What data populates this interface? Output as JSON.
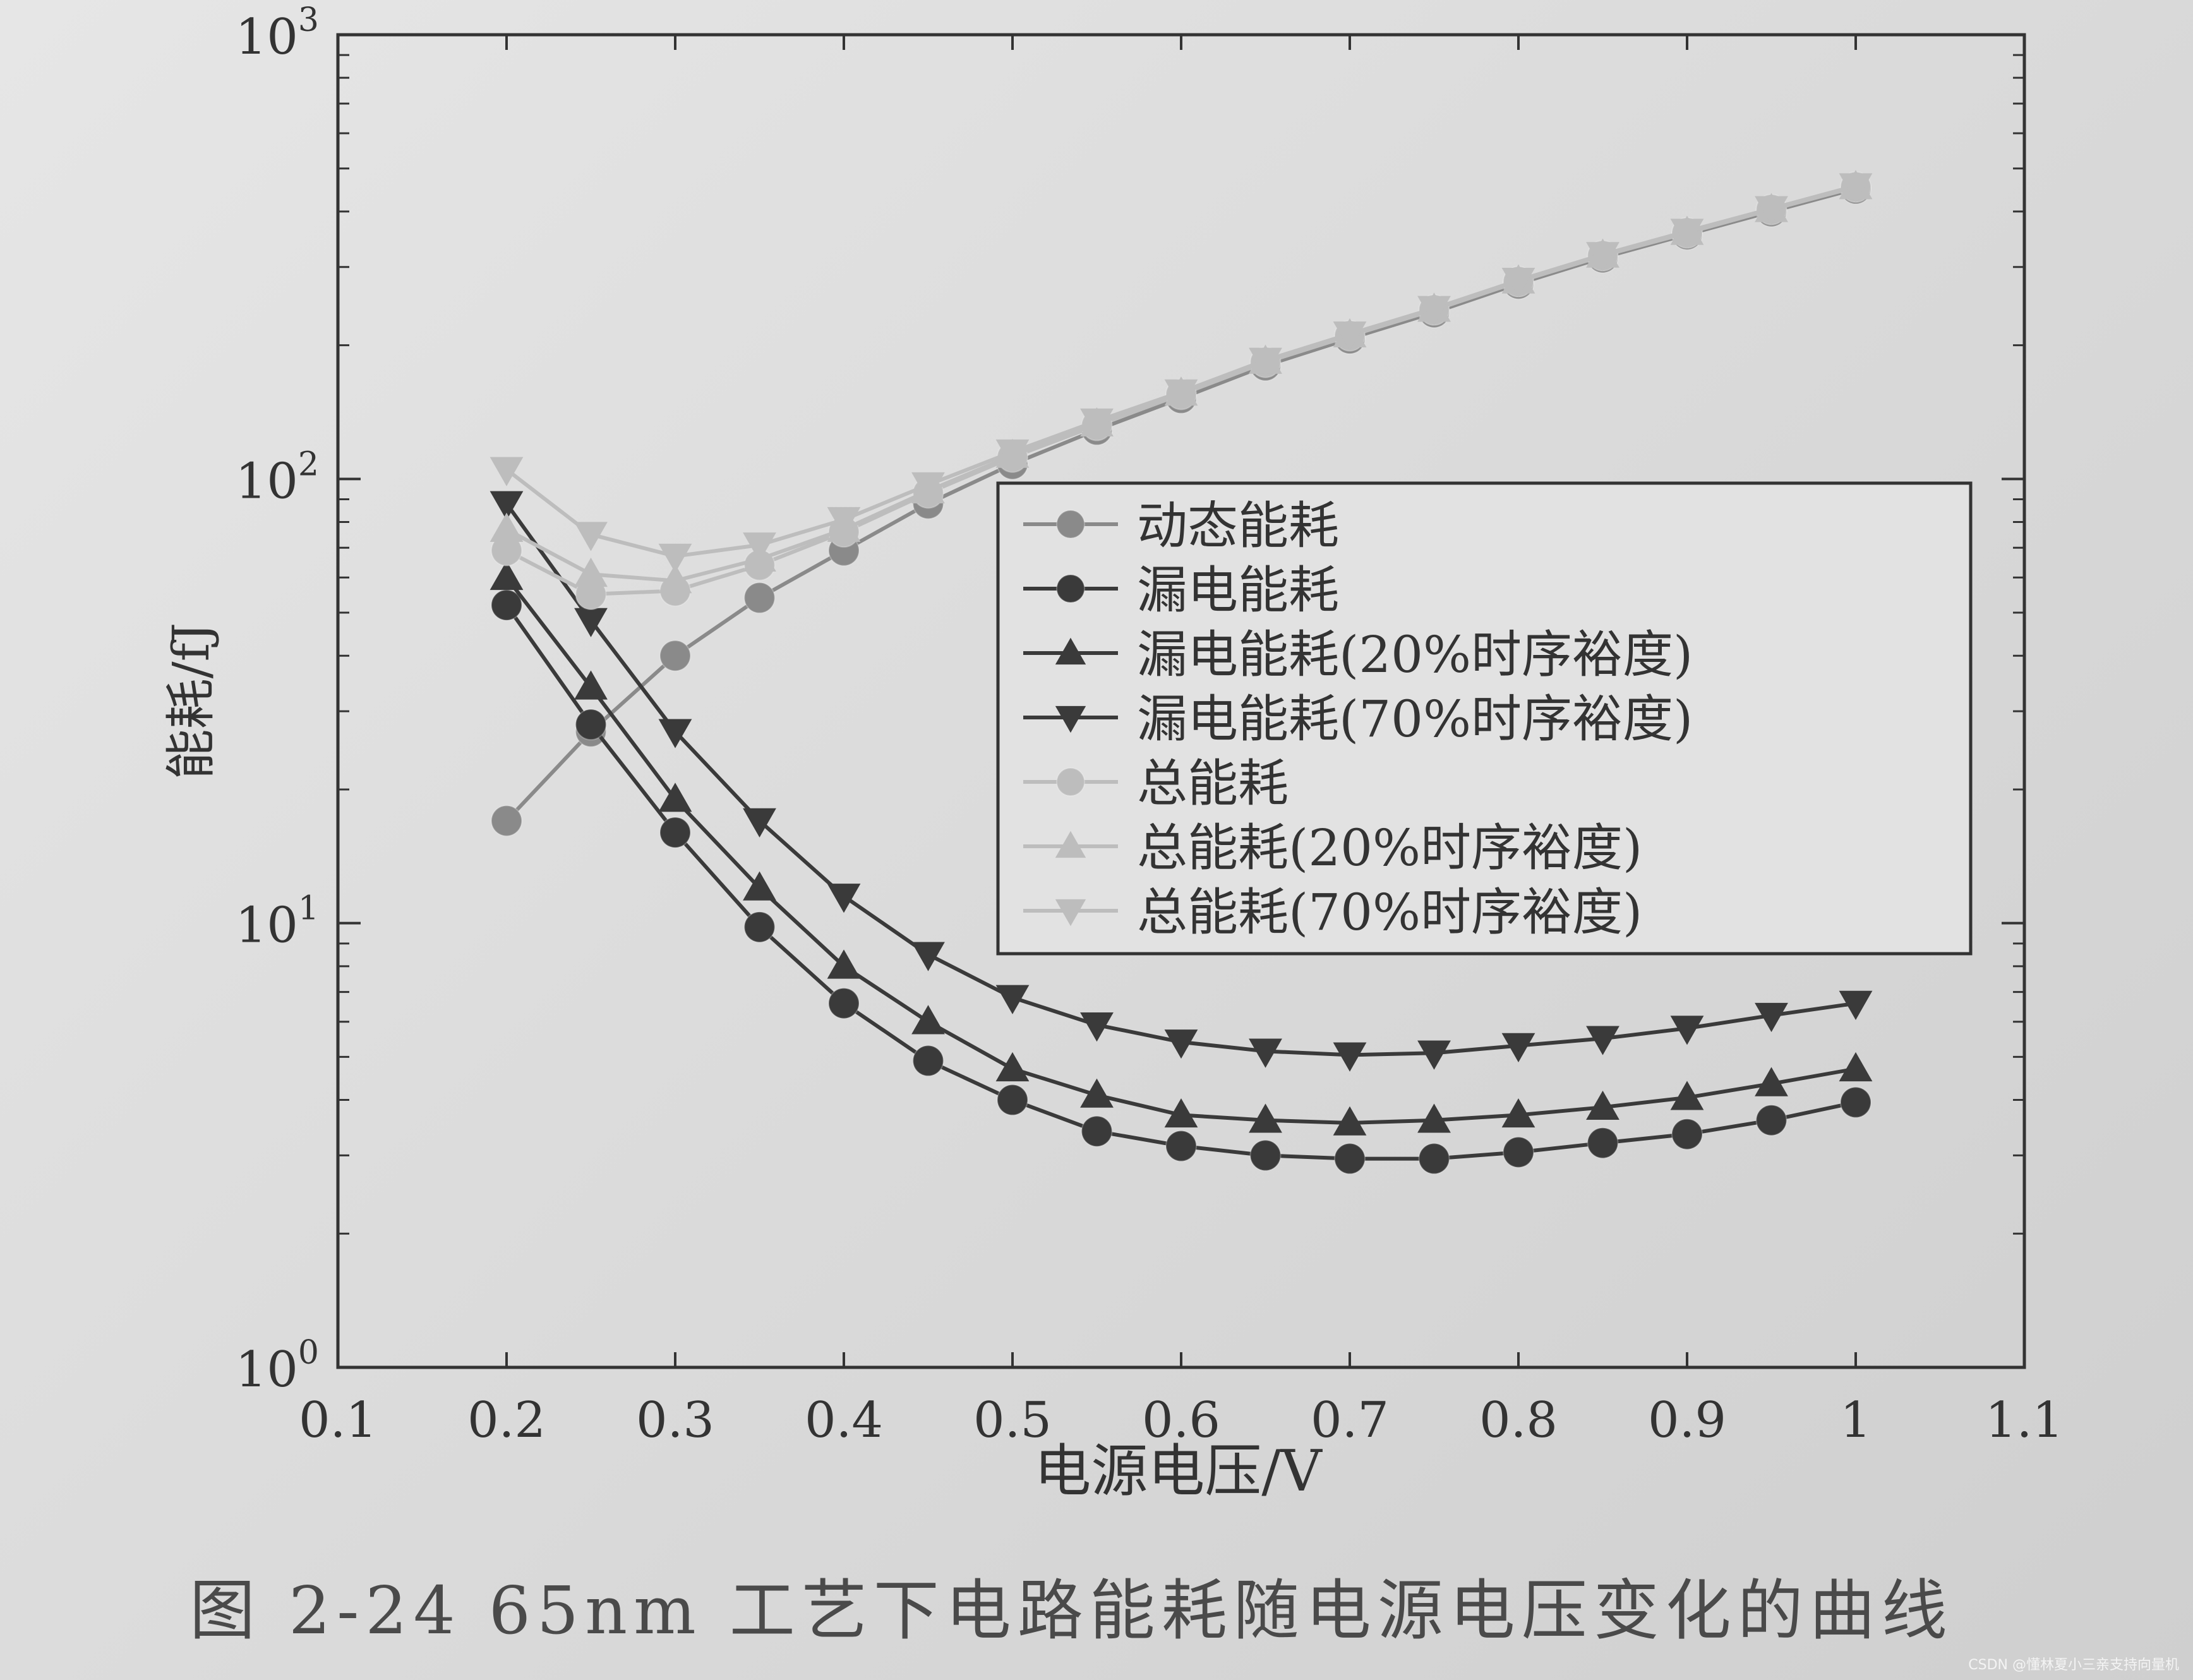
{
  "chart_data": {
    "type": "line",
    "xlabel": "电源电压/V",
    "ylabel": "能耗/fJ",
    "xlim": [
      0.1,
      1.1
    ],
    "ylim": [
      1,
      1000
    ],
    "yscale": "log",
    "x_ticks": [
      "0.1",
      "0.2",
      "0.3",
      "0.4",
      "0.5",
      "0.6",
      "0.7",
      "0.8",
      "0.9",
      "1",
      "1.1"
    ],
    "y_ticks": [
      {
        "base": "10",
        "exp": "0"
      },
      {
        "base": "10",
        "exp": "1"
      },
      {
        "base": "10",
        "exp": "2"
      },
      {
        "base": "10",
        "exp": "3"
      }
    ],
    "grid": false,
    "legend_position": "center-right",
    "x": [
      0.2,
      0.25,
      0.3,
      0.35,
      0.4,
      0.45,
      0.5,
      0.55,
      0.6,
      0.65,
      0.7,
      0.75,
      0.8,
      0.85,
      0.9,
      0.95,
      1.0
    ],
    "series": [
      {
        "name": "动态能耗",
        "marker": "circle",
        "color": "#8a8a8a",
        "values": [
          17,
          27,
          40,
          54,
          69,
          88,
          108,
          129,
          152,
          180,
          207,
          237,
          275,
          315,
          355,
          400,
          450
        ]
      },
      {
        "name": "漏电能耗",
        "marker": "circle",
        "color": "#3a3a3a",
        "values": [
          52,
          28,
          16,
          9.8,
          6.6,
          4.9,
          4.0,
          3.4,
          3.15,
          3.0,
          2.95,
          2.95,
          3.05,
          3.2,
          3.35,
          3.6,
          3.95
        ]
      },
      {
        "name": "漏电能耗(20%时序裕度)",
        "marker": "triangle-up",
        "color": "#3a3a3a",
        "values": [
          60,
          34,
          19,
          12,
          8.0,
          6.0,
          4.7,
          4.1,
          3.7,
          3.6,
          3.55,
          3.6,
          3.7,
          3.85,
          4.05,
          4.35,
          4.7
        ]
      },
      {
        "name": "漏电能耗(70%时序裕度)",
        "marker": "triangle-down",
        "color": "#3a3a3a",
        "values": [
          88,
          48,
          27,
          17,
          11.5,
          8.5,
          6.8,
          5.9,
          5.4,
          5.15,
          5.05,
          5.1,
          5.3,
          5.5,
          5.8,
          6.2,
          6.6
        ]
      },
      {
        "name": "总能耗",
        "marker": "circle",
        "color": "#bdbdbd",
        "values": [
          69,
          55,
          56,
          64,
          76,
          93,
          112,
          132,
          155,
          183,
          210,
          240,
          278,
          318,
          358,
          404,
          454
        ]
      },
      {
        "name": "总能耗(20%时序裕度)",
        "marker": "triangle-up",
        "color": "#bdbdbd",
        "values": [
          77,
          61,
          59,
          66,
          77,
          94,
          113,
          133,
          156,
          184,
          211,
          241,
          279,
          319,
          359,
          404,
          455
        ]
      },
      {
        "name": "总能耗(70%时序裕度)",
        "marker": "triangle-down",
        "color": "#bdbdbd",
        "values": [
          105,
          75,
          67,
          71,
          81,
          97,
          115,
          135,
          157,
          185,
          212,
          242,
          280,
          320,
          361,
          406,
          457
        ]
      }
    ]
  },
  "caption": "图 2-24    65nm 工艺下电路能耗随电源电压变化的曲线",
  "watermark": "CSDN @懂林夏小三亲支持向量机"
}
